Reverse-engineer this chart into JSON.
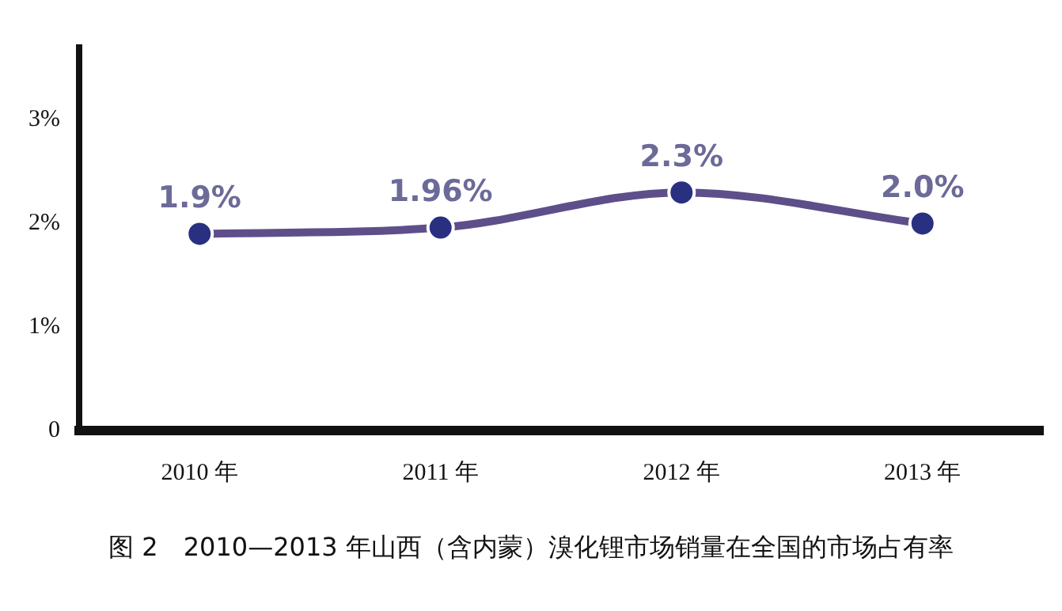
{
  "chart_data": {
    "type": "line",
    "categories": [
      "2010 年",
      "2011 年",
      "2012 年",
      "2013 年"
    ],
    "series": [
      {
        "color": "#5e4f8a",
        "values": [
          1.9,
          1.96,
          2.3,
          2.0
        ],
        "value_labels": [
          "1.9%",
          "1.96%",
          "2.3%",
          "2.0%"
        ]
      }
    ],
    "ylim": [
      0,
      3.7
    ],
    "yticks": [
      {
        "value": 0,
        "label": "0"
      },
      {
        "value": 1,
        "label": "1%"
      },
      {
        "value": 2,
        "label": "2%"
      },
      {
        "value": 3,
        "label": "3%"
      }
    ],
    "grid": false,
    "legend": false,
    "marker": "circle",
    "line_style": "solid",
    "annotations": [
      "图 2　2010—2013 年山西（含内蒙）溴化锂市场销量在全国的市场占有率"
    ]
  }
}
